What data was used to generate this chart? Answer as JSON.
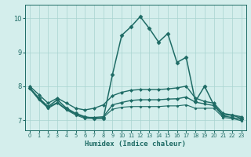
{
  "xlabel": "Humidex (Indice chaleur)",
  "background_color": "#d4eeec",
  "grid_color": "#a8d4d0",
  "line_color": "#1e6b65",
  "xlim": [
    -0.5,
    23.5
  ],
  "ylim": [
    6.7,
    10.4
  ],
  "yticks": [
    7,
    8,
    9,
    10
  ],
  "xticks": [
    0,
    1,
    2,
    3,
    4,
    5,
    6,
    7,
    8,
    9,
    10,
    11,
    12,
    13,
    14,
    15,
    16,
    17,
    18,
    19,
    20,
    21,
    22,
    23
  ],
  "lines": [
    {
      "x": [
        0,
        1,
        2,
        3,
        4,
        5,
        6,
        7,
        8,
        9,
        10,
        11,
        12,
        13,
        14,
        15,
        16,
        17,
        18,
        19,
        20,
        21,
        22,
        23
      ],
      "y": [
        7.95,
        7.65,
        7.4,
        7.6,
        7.35,
        7.2,
        7.1,
        7.05,
        7.05,
        8.35,
        9.5,
        9.75,
        10.05,
        9.7,
        9.3,
        9.55,
        8.7,
        8.85,
        7.55,
        8.0,
        7.45,
        7.15,
        7.15,
        7.05
      ],
      "marker": "D",
      "markersize": 2.5,
      "linewidth": 1.1
    },
    {
      "x": [
        0,
        1,
        2,
        3,
        4,
        5,
        6,
        7,
        8,
        9,
        10,
        11,
        12,
        13,
        14,
        15,
        16,
        17,
        18,
        19,
        20,
        21,
        22,
        23
      ],
      "y": [
        8.0,
        7.75,
        7.5,
        7.65,
        7.5,
        7.35,
        7.3,
        7.35,
        7.45,
        7.72,
        7.82,
        7.88,
        7.9,
        7.9,
        7.9,
        7.92,
        7.95,
        8.0,
        7.65,
        7.55,
        7.5,
        7.2,
        7.15,
        7.1
      ],
      "marker": "D",
      "markersize": 2.0,
      "linewidth": 1.0
    },
    {
      "x": [
        0,
        1,
        2,
        3,
        4,
        5,
        6,
        7,
        8,
        9,
        10,
        11,
        12,
        13,
        14,
        15,
        16,
        17,
        18,
        19,
        20,
        21,
        22,
        23
      ],
      "y": [
        7.95,
        7.62,
        7.38,
        7.52,
        7.32,
        7.18,
        7.08,
        7.08,
        7.1,
        7.45,
        7.52,
        7.58,
        7.6,
        7.6,
        7.6,
        7.62,
        7.63,
        7.68,
        7.53,
        7.48,
        7.43,
        7.12,
        7.08,
        7.02
      ],
      "marker": "D",
      "markersize": 2.0,
      "linewidth": 1.0
    },
    {
      "x": [
        0,
        1,
        2,
        3,
        4,
        5,
        6,
        7,
        8,
        9,
        10,
        11,
        12,
        13,
        14,
        15,
        16,
        17,
        18,
        19,
        20,
        21,
        22,
        23
      ],
      "y": [
        7.93,
        7.6,
        7.35,
        7.5,
        7.3,
        7.15,
        7.05,
        7.05,
        7.08,
        7.32,
        7.38,
        7.4,
        7.4,
        7.4,
        7.4,
        7.42,
        7.42,
        7.45,
        7.35,
        7.35,
        7.35,
        7.08,
        7.05,
        6.98
      ],
      "marker": "D",
      "markersize": 1.5,
      "linewidth": 0.8
    }
  ]
}
